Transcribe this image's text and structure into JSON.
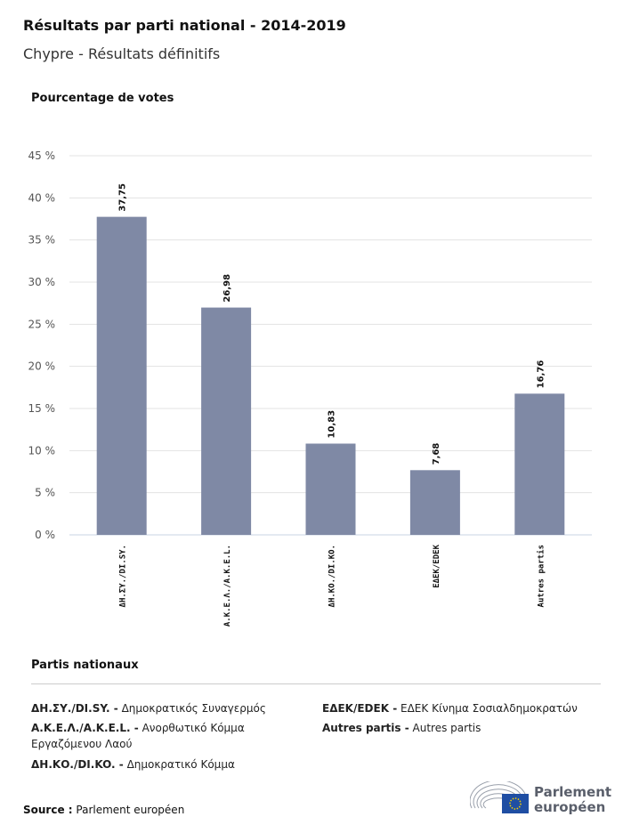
{
  "title": "Résultats par parti national - 2014-2019",
  "subtitle": "Chypre - Résultats définitifs",
  "chart_data": {
    "type": "bar",
    "ylabel": "Pourcentage de votes",
    "categories": [
      "ΔΗ.ΣΥ./DI.SY.",
      "Α.Κ.Ε.Λ./A.K.E.L.",
      "ΔΗ.ΚΟ./DI.KO.",
      "ΕΔΕΚ/EDEK",
      "Autres partis"
    ],
    "values": [
      37.75,
      26.98,
      10.83,
      7.68,
      16.76
    ],
    "value_labels": [
      "37,75",
      "26,98",
      "10,83",
      "7,68",
      "16,76"
    ],
    "ylim": [
      0,
      45
    ],
    "yticks": [
      0,
      5,
      10,
      15,
      20,
      25,
      30,
      35,
      40,
      45
    ],
    "ytick_labels": [
      "0 %",
      "5 %",
      "10 %",
      "15 %",
      "20 %",
      "25 %",
      "30 %",
      "35 %",
      "40 %",
      "45 %"
    ],
    "grid": true,
    "bar_color": "#7f89a5"
  },
  "legend": {
    "title": "Partis nationaux",
    "items": [
      {
        "abbr": "ΔΗ.ΣΥ./DI.SY. -",
        "name": "Δημοκρατικός Συναγερμός"
      },
      {
        "abbr": "Α.Κ.Ε.Λ./A.K.E.L. -",
        "name": "Ανορθωτικό Κόμμα Εργαζόμενου Λαού"
      },
      {
        "abbr": "ΔΗ.ΚΟ./DI.KO. -",
        "name": "Δημοκρατικό Κόμμα"
      },
      {
        "abbr": "ΕΔΕΚ/EDEK -",
        "name": "ΕΔΕΚ Κίνημα Σοσιαλδημοκρατών"
      },
      {
        "abbr": "Autres partis -",
        "name": "Autres partis"
      }
    ]
  },
  "source": {
    "label": "Source :",
    "value": "Parlement européen"
  },
  "logo": {
    "text": "Parlement européen",
    "line1": "Parlement",
    "line2": "européen"
  }
}
